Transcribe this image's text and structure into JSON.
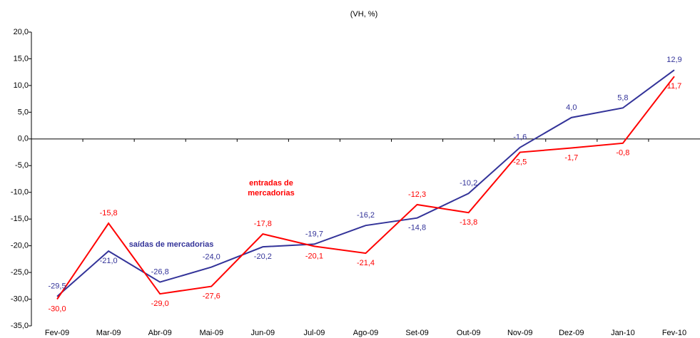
{
  "chart_data": {
    "type": "line",
    "title": "(VH, %)",
    "categories": [
      "Fev-09",
      "Mar-09",
      "Abr-09",
      "Mai-09",
      "Jun-09",
      "Jul-09",
      "Ago-09",
      "Set-09",
      "Out-09",
      "Nov-09",
      "Dez-09",
      "Jan-10",
      "Fev-10"
    ],
    "series": [
      {
        "name": "saídas de mercadorias",
        "color": "#333399",
        "values": [
          -29.5,
          -21.0,
          -26.8,
          -24.0,
          -20.2,
          -19.7,
          -16.2,
          -14.8,
          -10.2,
          -1.6,
          4.0,
          5.8,
          12.9
        ],
        "value_labels": [
          "-29,5",
          "-21,0",
          "-26,8",
          "-24,0",
          "-20,2",
          "-19,7",
          "-16,2",
          "-14,8",
          "-10,2",
          "-1,6",
          "4,0",
          "5,8",
          "12,9"
        ]
      },
      {
        "name": "entradas de mercadorias",
        "color": "#ff0000",
        "values": [
          -30.0,
          -15.8,
          -29.0,
          -27.6,
          -17.8,
          -20.1,
          -21.4,
          -12.3,
          -13.8,
          -2.5,
          -1.7,
          -0.8,
          11.7
        ],
        "value_labels": [
          "-30,0",
          "-15,8",
          "-29,0",
          "-27,6",
          "-17,8",
          "-20,1",
          "-21,4",
          "-12,3",
          "-13,8",
          "-2,5",
          "-1,7",
          "-0,8",
          "11,7"
        ]
      }
    ],
    "ylim": [
      -35,
      20
    ],
    "yticks": [
      {
        "value": -35,
        "label": "-35,0"
      },
      {
        "value": -30,
        "label": "-30,0"
      },
      {
        "value": -25,
        "label": "-25,0"
      },
      {
        "value": -20,
        "label": "-20,0"
      },
      {
        "value": -15,
        "label": "-15,0"
      },
      {
        "value": -10,
        "label": "-10,0"
      },
      {
        "value": -5,
        "label": "-5,0"
      },
      {
        "value": 0,
        "label": "0,0"
      },
      {
        "value": 5,
        "label": "5,0"
      },
      {
        "value": 10,
        "label": "10,0"
      },
      {
        "value": 15,
        "label": "15,0"
      },
      {
        "value": 20,
        "label": "20,0"
      }
    ]
  }
}
